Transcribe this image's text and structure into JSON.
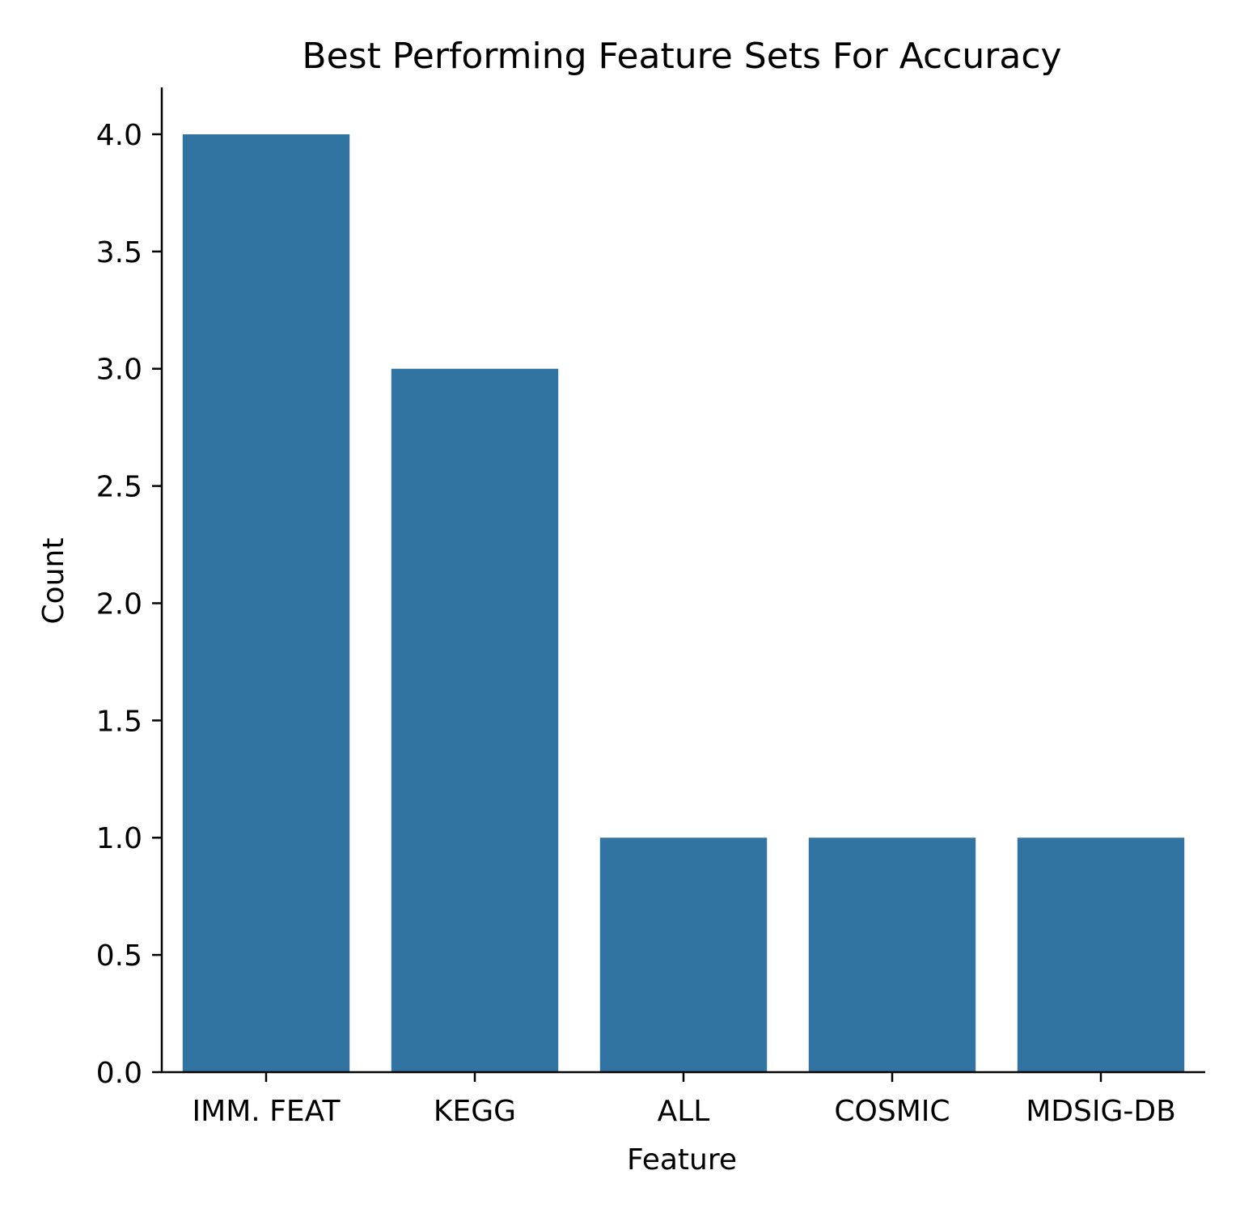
{
  "chart_data": {
    "type": "bar",
    "title": "Best Performing Feature Sets For Accuracy",
    "xlabel": "Feature",
    "ylabel": "Count",
    "categories": [
      "IMM. FEAT",
      "KEGG",
      "ALL",
      "COSMIC",
      "MDSIG-DB"
    ],
    "values": [
      4,
      3,
      1,
      1,
      1
    ],
    "ylim": [
      0,
      4.2
    ],
    "yticks": [
      "0.0",
      "0.5",
      "1.0",
      "1.5",
      "2.0",
      "2.5",
      "3.0",
      "3.5",
      "4.0"
    ],
    "bar_color": "#3274a1",
    "grid": false,
    "legend": "none"
  }
}
